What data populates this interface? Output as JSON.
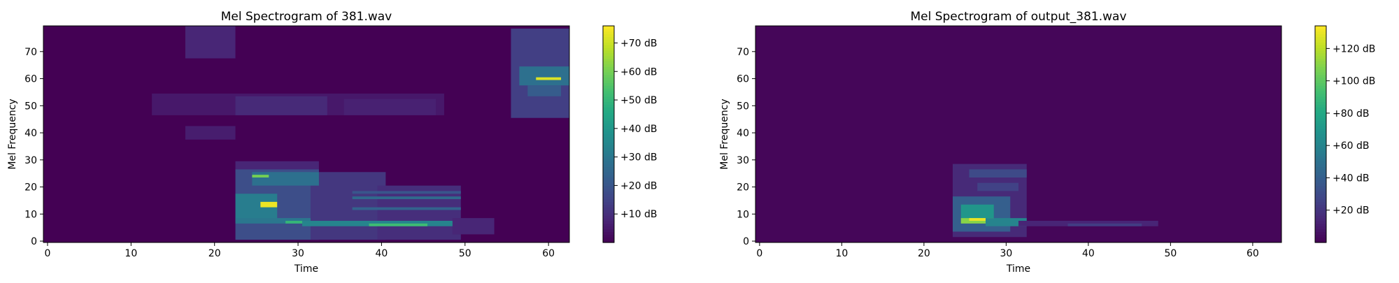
{
  "chart_data": [
    {
      "type": "heatmap",
      "title": "Mel Spectrogram of 381.wav",
      "xlabel": "Time",
      "ylabel": "Mel Frequency",
      "xlim": [
        -0.5,
        62.5
      ],
      "ylim": [
        -0.5,
        79.5
      ],
      "xticks": [
        0,
        10,
        20,
        30,
        40,
        50,
        60
      ],
      "yticks": [
        0,
        10,
        20,
        30,
        40,
        50,
        60,
        70
      ],
      "colormap": "viridis",
      "colorbar": {
        "range": [
          0,
          76
        ],
        "ticks": [
          10,
          20,
          30,
          40,
          50,
          60,
          70
        ],
        "tick_labels": [
          "+10 dB",
          "+20 dB",
          "+30 dB",
          "+40 dB",
          "+50 dB",
          "+60 dB",
          "+70 dB"
        ]
      },
      "background_value": 0,
      "regions": [
        {
          "x": [
            17,
            22
          ],
          "y": [
            68,
            79
          ],
          "v": 8
        },
        {
          "x": [
            17,
            22
          ],
          "y": [
            38,
            42
          ],
          "v": 6
        },
        {
          "x": [
            13,
            47
          ],
          "y": [
            47,
            54
          ],
          "v": 5
        },
        {
          "x": [
            23,
            33
          ],
          "y": [
            47,
            53
          ],
          "v": 9
        },
        {
          "x": [
            36,
            46
          ],
          "y": [
            47,
            52
          ],
          "v": 7
        },
        {
          "x": [
            23,
            32
          ],
          "y": [
            26,
            29
          ],
          "v": 8
        },
        {
          "x": [
            23,
            32
          ],
          "y": [
            1,
            26
          ],
          "v": 18
        },
        {
          "x": [
            32,
            40
          ],
          "y": [
            1,
            25
          ],
          "v": 12
        },
        {
          "x": [
            40,
            49
          ],
          "y": [
            1,
            20
          ],
          "v": 10
        },
        {
          "x": [
            23,
            27
          ],
          "y": [
            8,
            17
          ],
          "v": 32
        },
        {
          "x": [
            25,
            32
          ],
          "y": [
            21,
            25
          ],
          "v": 28
        },
        {
          "x": [
            26,
            27
          ],
          "y": [
            13,
            14
          ],
          "v": 74
        },
        {
          "x": [
            25,
            26
          ],
          "y": [
            24,
            24
          ],
          "v": 60
        },
        {
          "x": [
            23,
            31
          ],
          "y": [
            7,
            8
          ],
          "v": 30
        },
        {
          "x": [
            29,
            31
          ],
          "y": [
            7,
            7
          ],
          "v": 50
        },
        {
          "x": [
            31,
            49
          ],
          "y": [
            6,
            7
          ],
          "v": 34
        },
        {
          "x": [
            39,
            45
          ],
          "y": [
            6,
            6
          ],
          "v": 52
        },
        {
          "x": [
            37,
            49
          ],
          "y": [
            12,
            12
          ],
          "v": 24
        },
        {
          "x": [
            37,
            49
          ],
          "y": [
            16,
            16
          ],
          "v": 26
        },
        {
          "x": [
            37,
            49
          ],
          "y": [
            18,
            18
          ],
          "v": 20
        },
        {
          "x": [
            49,
            53
          ],
          "y": [
            3,
            8
          ],
          "v": 8
        },
        {
          "x": [
            56,
            62
          ],
          "y": [
            46,
            78
          ],
          "v": 14
        },
        {
          "x": [
            57,
            62
          ],
          "y": [
            58,
            64
          ],
          "v": 28
        },
        {
          "x": [
            58,
            61
          ],
          "y": [
            54,
            57
          ],
          "v": 22
        },
        {
          "x": [
            59,
            61
          ],
          "y": [
            60,
            60
          ],
          "v": 72
        }
      ]
    },
    {
      "type": "heatmap",
      "title": "Mel Spectrogram of output_381.wav",
      "xlabel": "Time",
      "ylabel": "Mel Frequency",
      "xlim": [
        -0.5,
        63.5
      ],
      "ylim": [
        -0.5,
        79.5
      ],
      "xticks": [
        0,
        10,
        20,
        30,
        40,
        50,
        60
      ],
      "yticks": [
        0,
        10,
        20,
        30,
        40,
        50,
        60,
        70
      ],
      "colormap": "viridis",
      "colorbar": {
        "range": [
          0,
          134
        ],
        "ticks": [
          20,
          40,
          60,
          80,
          100,
          120
        ],
        "tick_labels": [
          "+20 dB",
          "+40 dB",
          "+60 dB",
          "+80 dB",
          "+100 dB",
          "+120 dB"
        ]
      },
      "background_value": 2,
      "regions": [
        {
          "x": [
            24,
            32
          ],
          "y": [
            2,
            28
          ],
          "v": 16
        },
        {
          "x": [
            26,
            32
          ],
          "y": [
            24,
            26
          ],
          "v": 30
        },
        {
          "x": [
            27,
            31
          ],
          "y": [
            19,
            21
          ],
          "v": 26
        },
        {
          "x": [
            24,
            30
          ],
          "y": [
            4,
            16
          ],
          "v": 40
        },
        {
          "x": [
            25,
            28
          ],
          "y": [
            9,
            13
          ],
          "v": 70
        },
        {
          "x": [
            25,
            28
          ],
          "y": [
            7,
            8
          ],
          "v": 110
        },
        {
          "x": [
            26,
            27
          ],
          "y": [
            8,
            8
          ],
          "v": 130
        },
        {
          "x": [
            28,
            32
          ],
          "y": [
            6,
            8
          ],
          "v": 60
        },
        {
          "x": [
            32,
            48
          ],
          "y": [
            6,
            7
          ],
          "v": 14
        },
        {
          "x": [
            38,
            46
          ],
          "y": [
            6,
            6
          ],
          "v": 24
        }
      ]
    }
  ]
}
